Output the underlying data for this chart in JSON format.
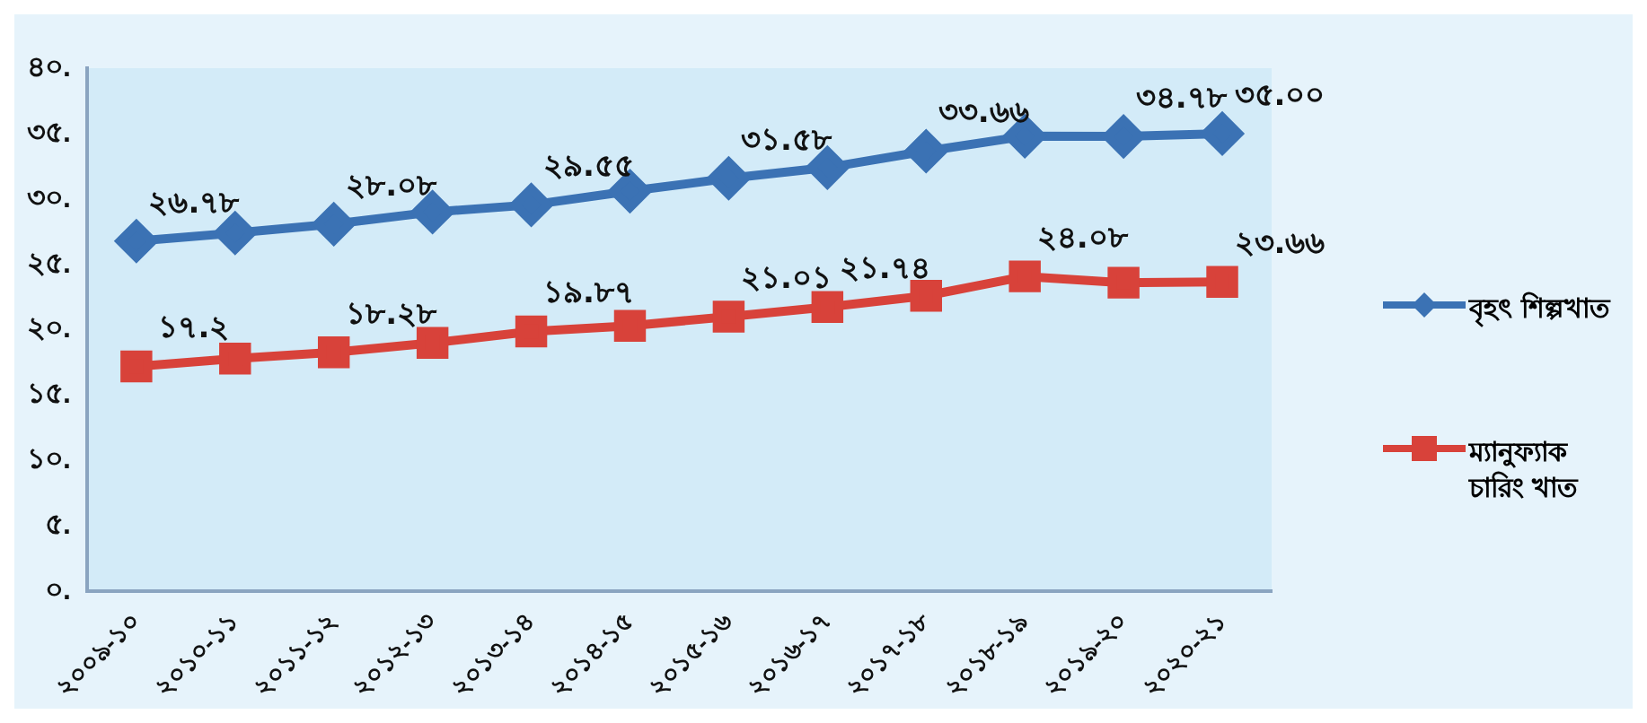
{
  "chart_data": {
    "type": "line",
    "categories": [
      "২০০৯-১০",
      "২০১০-১১",
      "২০১১-১২",
      "২০১২-১৩",
      "২০১৩-১৪",
      "২০১৪-১৫",
      "২০১৫-১৬",
      "২০১৬-১৭",
      "২০১৭-১৮",
      "২০১৮-১৯",
      "২০১৯-২০",
      "২০২০-২১"
    ],
    "series": [
      {
        "name": "বৃহৎ শিল্পখাত",
        "color": "#3b72b4",
        "marker": "diamond",
        "values": [
          26.78,
          27.4,
          28.08,
          29.0,
          29.55,
          30.6,
          31.58,
          32.4,
          33.66,
          34.8,
          34.78,
          35.0
        ],
        "value_labels": [
          "২৬.৭৮",
          null,
          "২৮.০৮",
          null,
          "২৯.৫৫",
          null,
          "৩১.৫৮",
          null,
          "৩৩.৬৬",
          null,
          "৩৪.৭৮",
          "৩৫.০০"
        ]
      },
      {
        "name": "ম্যানুফ্যাক চারিং খাত",
        "color": "#d8423a",
        "marker": "square",
        "values": [
          17.2,
          17.8,
          18.28,
          19.0,
          19.87,
          20.3,
          21.01,
          21.74,
          22.6,
          24.08,
          23.6,
          23.66
        ],
        "value_labels": [
          "১৭.২",
          null,
          "১৮.২৮",
          null,
          "১৯.৮৭",
          null,
          "২১.০১",
          "২১.৭৪",
          null,
          "২৪.০৮",
          null,
          "২৩.৬৬"
        ]
      }
    ],
    "ylim": [
      0,
      40
    ],
    "yticks": [
      {
        "value": 0,
        "label": "০."
      },
      {
        "value": 5,
        "label": "৫."
      },
      {
        "value": 10,
        "label": "১০."
      },
      {
        "value": 15,
        "label": "১৫."
      },
      {
        "value": 20,
        "label": "২০."
      },
      {
        "value": 25,
        "label": "২৫."
      },
      {
        "value": 30,
        "label": "৩০."
      },
      {
        "value": 35,
        "label": "৩৫."
      },
      {
        "value": 40,
        "label": "৪০."
      }
    ],
    "grid": false,
    "legend": "right",
    "line_style": "solid"
  }
}
